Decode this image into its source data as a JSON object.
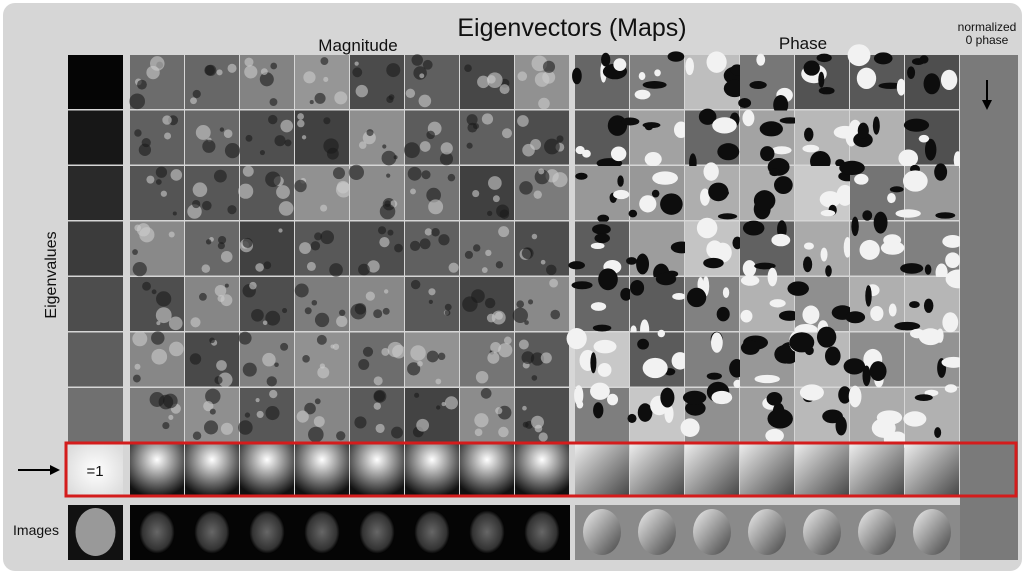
{
  "header": {
    "title": "Eigenvectors (Maps)"
  },
  "labels": {
    "magnitude": "Magnitude",
    "phase": "Phase",
    "normalized": [
      "normalized",
      "0 phase"
    ],
    "eigenvalues": "Eigenvalues",
    "unit_eigenvalue": "=1",
    "images": "Images"
  }
}
